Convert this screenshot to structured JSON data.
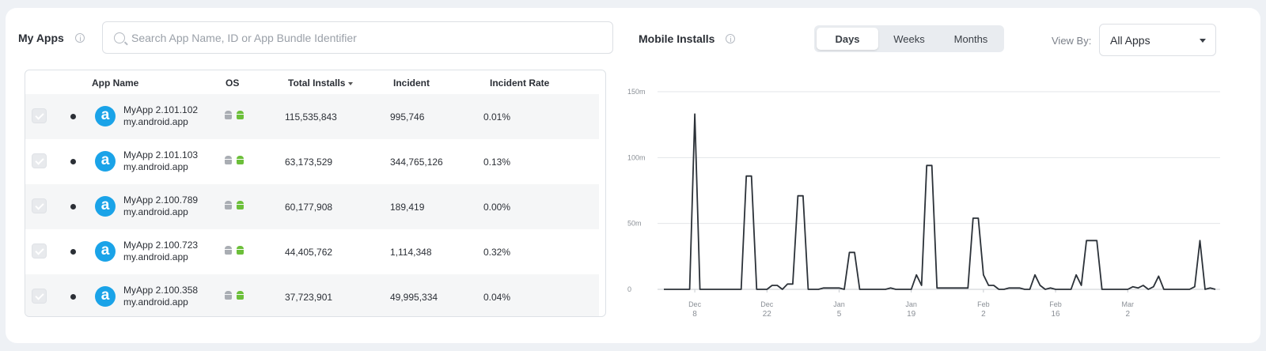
{
  "apps_panel": {
    "title": "My Apps",
    "search_placeholder": "Search App Name, ID or App Bundle Identifier",
    "columns": {
      "app_name": "App Name",
      "os": "OS",
      "total_installs": "Total Installs",
      "incident": "Incident",
      "incident_rate": "Incident Rate"
    },
    "rows": [
      {
        "name": "MyApp 2.101.102",
        "bundle": "my.android.app",
        "total_installs": "115,535,843",
        "incident": "995,746",
        "incident_rate": "0.01%"
      },
      {
        "name": "MyApp 2.101.103",
        "bundle": "my.android.app",
        "total_installs": "63,173,529",
        "incident": "344,765,126",
        "incident_rate": "0.13%"
      },
      {
        "name": "MyApp 2.100.789",
        "bundle": "my.android.app",
        "total_installs": "60,177,908",
        "incident": "189,419",
        "incident_rate": "0.00%"
      },
      {
        "name": "MyApp 2.100.723",
        "bundle": "my.android.app",
        "total_installs": "44,405,762",
        "incident": "1,114,348",
        "incident_rate": "0.32%"
      },
      {
        "name": "MyApp 2.100.358",
        "bundle": "my.android.app",
        "total_installs": "37,723,901",
        "incident": "49,995,334",
        "incident_rate": "0.04%"
      }
    ],
    "logo_letter": "a",
    "colors": {
      "logo": "#1aa3e8",
      "android_green": "#6cbf3a"
    }
  },
  "installs_panel": {
    "title": "Mobile Installs",
    "ranges": [
      "Days",
      "Weeks",
      "Months"
    ],
    "active_range": "Days",
    "view_by_label": "View By:",
    "view_by_value": "All Apps"
  },
  "chart_data": {
    "type": "line",
    "ylim": [
      0,
      150
    ],
    "yticks": [
      "0",
      "50m",
      "100m",
      "150m"
    ],
    "ytick_values": [
      0,
      50,
      100,
      150
    ],
    "xticks": [
      {
        "month": "Dec",
        "day": "8",
        "index": 6
      },
      {
        "month": "Dec",
        "day": "22",
        "index": 20
      },
      {
        "month": "Jan",
        "day": "5",
        "index": 34
      },
      {
        "month": "Jan",
        "day": "19",
        "index": 48
      },
      {
        "month": "Feb",
        "day": "2",
        "index": 62
      },
      {
        "month": "Feb",
        "day": "16",
        "index": 76
      },
      {
        "month": "Mar",
        "day": "2",
        "index": 90
      }
    ],
    "grid": true,
    "series": [
      {
        "values": [
          0,
          0,
          0,
          0,
          0,
          0,
          133,
          0,
          0,
          0,
          0,
          0,
          0,
          0,
          0,
          0,
          86,
          86,
          0,
          0,
          0,
          3,
          3,
          0,
          4,
          4,
          71,
          71,
          0,
          0,
          0,
          1,
          1,
          1,
          1,
          0,
          28,
          28,
          0,
          0,
          0,
          0,
          0,
          0,
          1,
          0,
          0,
          0,
          0,
          11,
          3,
          94,
          94,
          1,
          1,
          1,
          1,
          1,
          1,
          1,
          54,
          54,
          11,
          3,
          3,
          0,
          0,
          1,
          1,
          1,
          0,
          0,
          11,
          3,
          0,
          1,
          0,
          0,
          0,
          0,
          11,
          3,
          37,
          37,
          37,
          0,
          0,
          0,
          0,
          0,
          0,
          2,
          1,
          3,
          0,
          2,
          10,
          0,
          0,
          0,
          0,
          0,
          0,
          2,
          37,
          0,
          1,
          0
        ]
      }
    ]
  }
}
